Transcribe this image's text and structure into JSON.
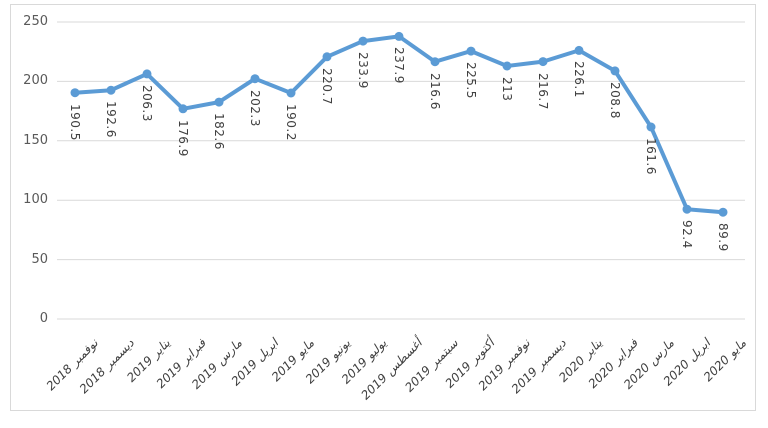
{
  "chart_data": {
    "type": "line",
    "title": "",
    "legend": "none",
    "categories": [
      "نوفمبر 2018",
      "ديسمبر 2018",
      "يناير 2019",
      "فبراير 2019",
      "مارس 2019",
      "ابريل 2019",
      "مايو 2019",
      "يونيو 2019",
      "يوليو 2019",
      "أغسطس 2019",
      "سبتمبر 2019",
      "أكتوبر 2019",
      "نوفمبر 2019",
      "ديسمبر 2019",
      "يناير 2020",
      "فبراير 2020",
      "مارس 2020",
      "ابريل 2020",
      "مايو 2020"
    ],
    "series": [
      {
        "values": [
          190.5,
          192.6,
          206.3,
          176.9,
          182.6,
          202.3,
          190.2,
          220.7,
          233.9,
          237.9,
          216.6,
          225.5,
          213,
          216.7,
          226.1,
          208.8,
          161.6,
          92.4,
          89.9
        ]
      }
    ],
    "xlabel": "",
    "ylabel": "",
    "yticks": [
      0,
      50,
      100,
      150,
      200,
      250
    ],
    "ylim": [
      0,
      250
    ],
    "grid": true,
    "data_labels_visible": true,
    "data_label_rotation_deg": 90,
    "data_label_position": "below-point",
    "x_label_rotation_deg": -45,
    "marker_shape": "circle",
    "colors": {
      "line": "#5B9BD5",
      "marker": "#5B9BD5",
      "gridline": "#D9D9D9",
      "axis_tick_text": "#595959",
      "data_label_text": "#404040",
      "x_label_text": "#404040",
      "chart_border": "#D9D9D9",
      "background": "#FFFFFF"
    }
  }
}
